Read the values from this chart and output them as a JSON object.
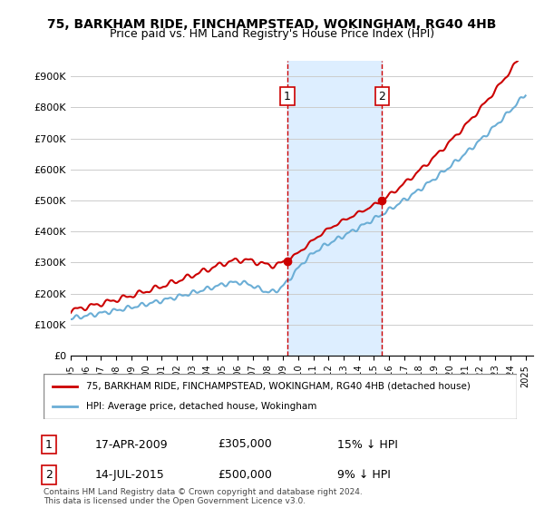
{
  "title1": "75, BARKHAM RIDE, FINCHAMPSTEAD, WOKINGHAM, RG40 4HB",
  "title2": "Price paid vs. HM Land Registry's House Price Index (HPI)",
  "ylabel": "",
  "ylim": [
    0,
    950000
  ],
  "yticks": [
    0,
    100000,
    200000,
    300000,
    400000,
    500000,
    600000,
    700000,
    800000,
    900000
  ],
  "ytick_labels": [
    "£0",
    "£100K",
    "£200K",
    "£300K",
    "£400K",
    "£500K",
    "£600K",
    "£700K",
    "£800K",
    "£900K"
  ],
  "sale1_date": 2009.29,
  "sale1_price": 305000,
  "sale1_label": "1",
  "sale2_date": 2015.54,
  "sale2_price": 500000,
  "sale2_label": "2",
  "hpi_color": "#6baed6",
  "price_color": "#cc0000",
  "shade_color": "#ddeeff",
  "vline_color": "#cc0000",
  "legend_label1": "75, BARKHAM RIDE, FINCHAMPSTEAD, WOKINGHAM, RG40 4HB (detached house)",
  "legend_label2": "HPI: Average price, detached house, Wokingham",
  "table_row1": [
    "1",
    "17-APR-2009",
    "£305,000",
    "15% ↓ HPI"
  ],
  "table_row2": [
    "2",
    "14-JUL-2015",
    "£500,000",
    "9% ↓ HPI"
  ],
  "footnote": "Contains HM Land Registry data © Crown copyright and database right 2024.\nThis data is licensed under the Open Government Licence v3.0.",
  "bg_color": "#ffffff",
  "grid_color": "#cccccc"
}
